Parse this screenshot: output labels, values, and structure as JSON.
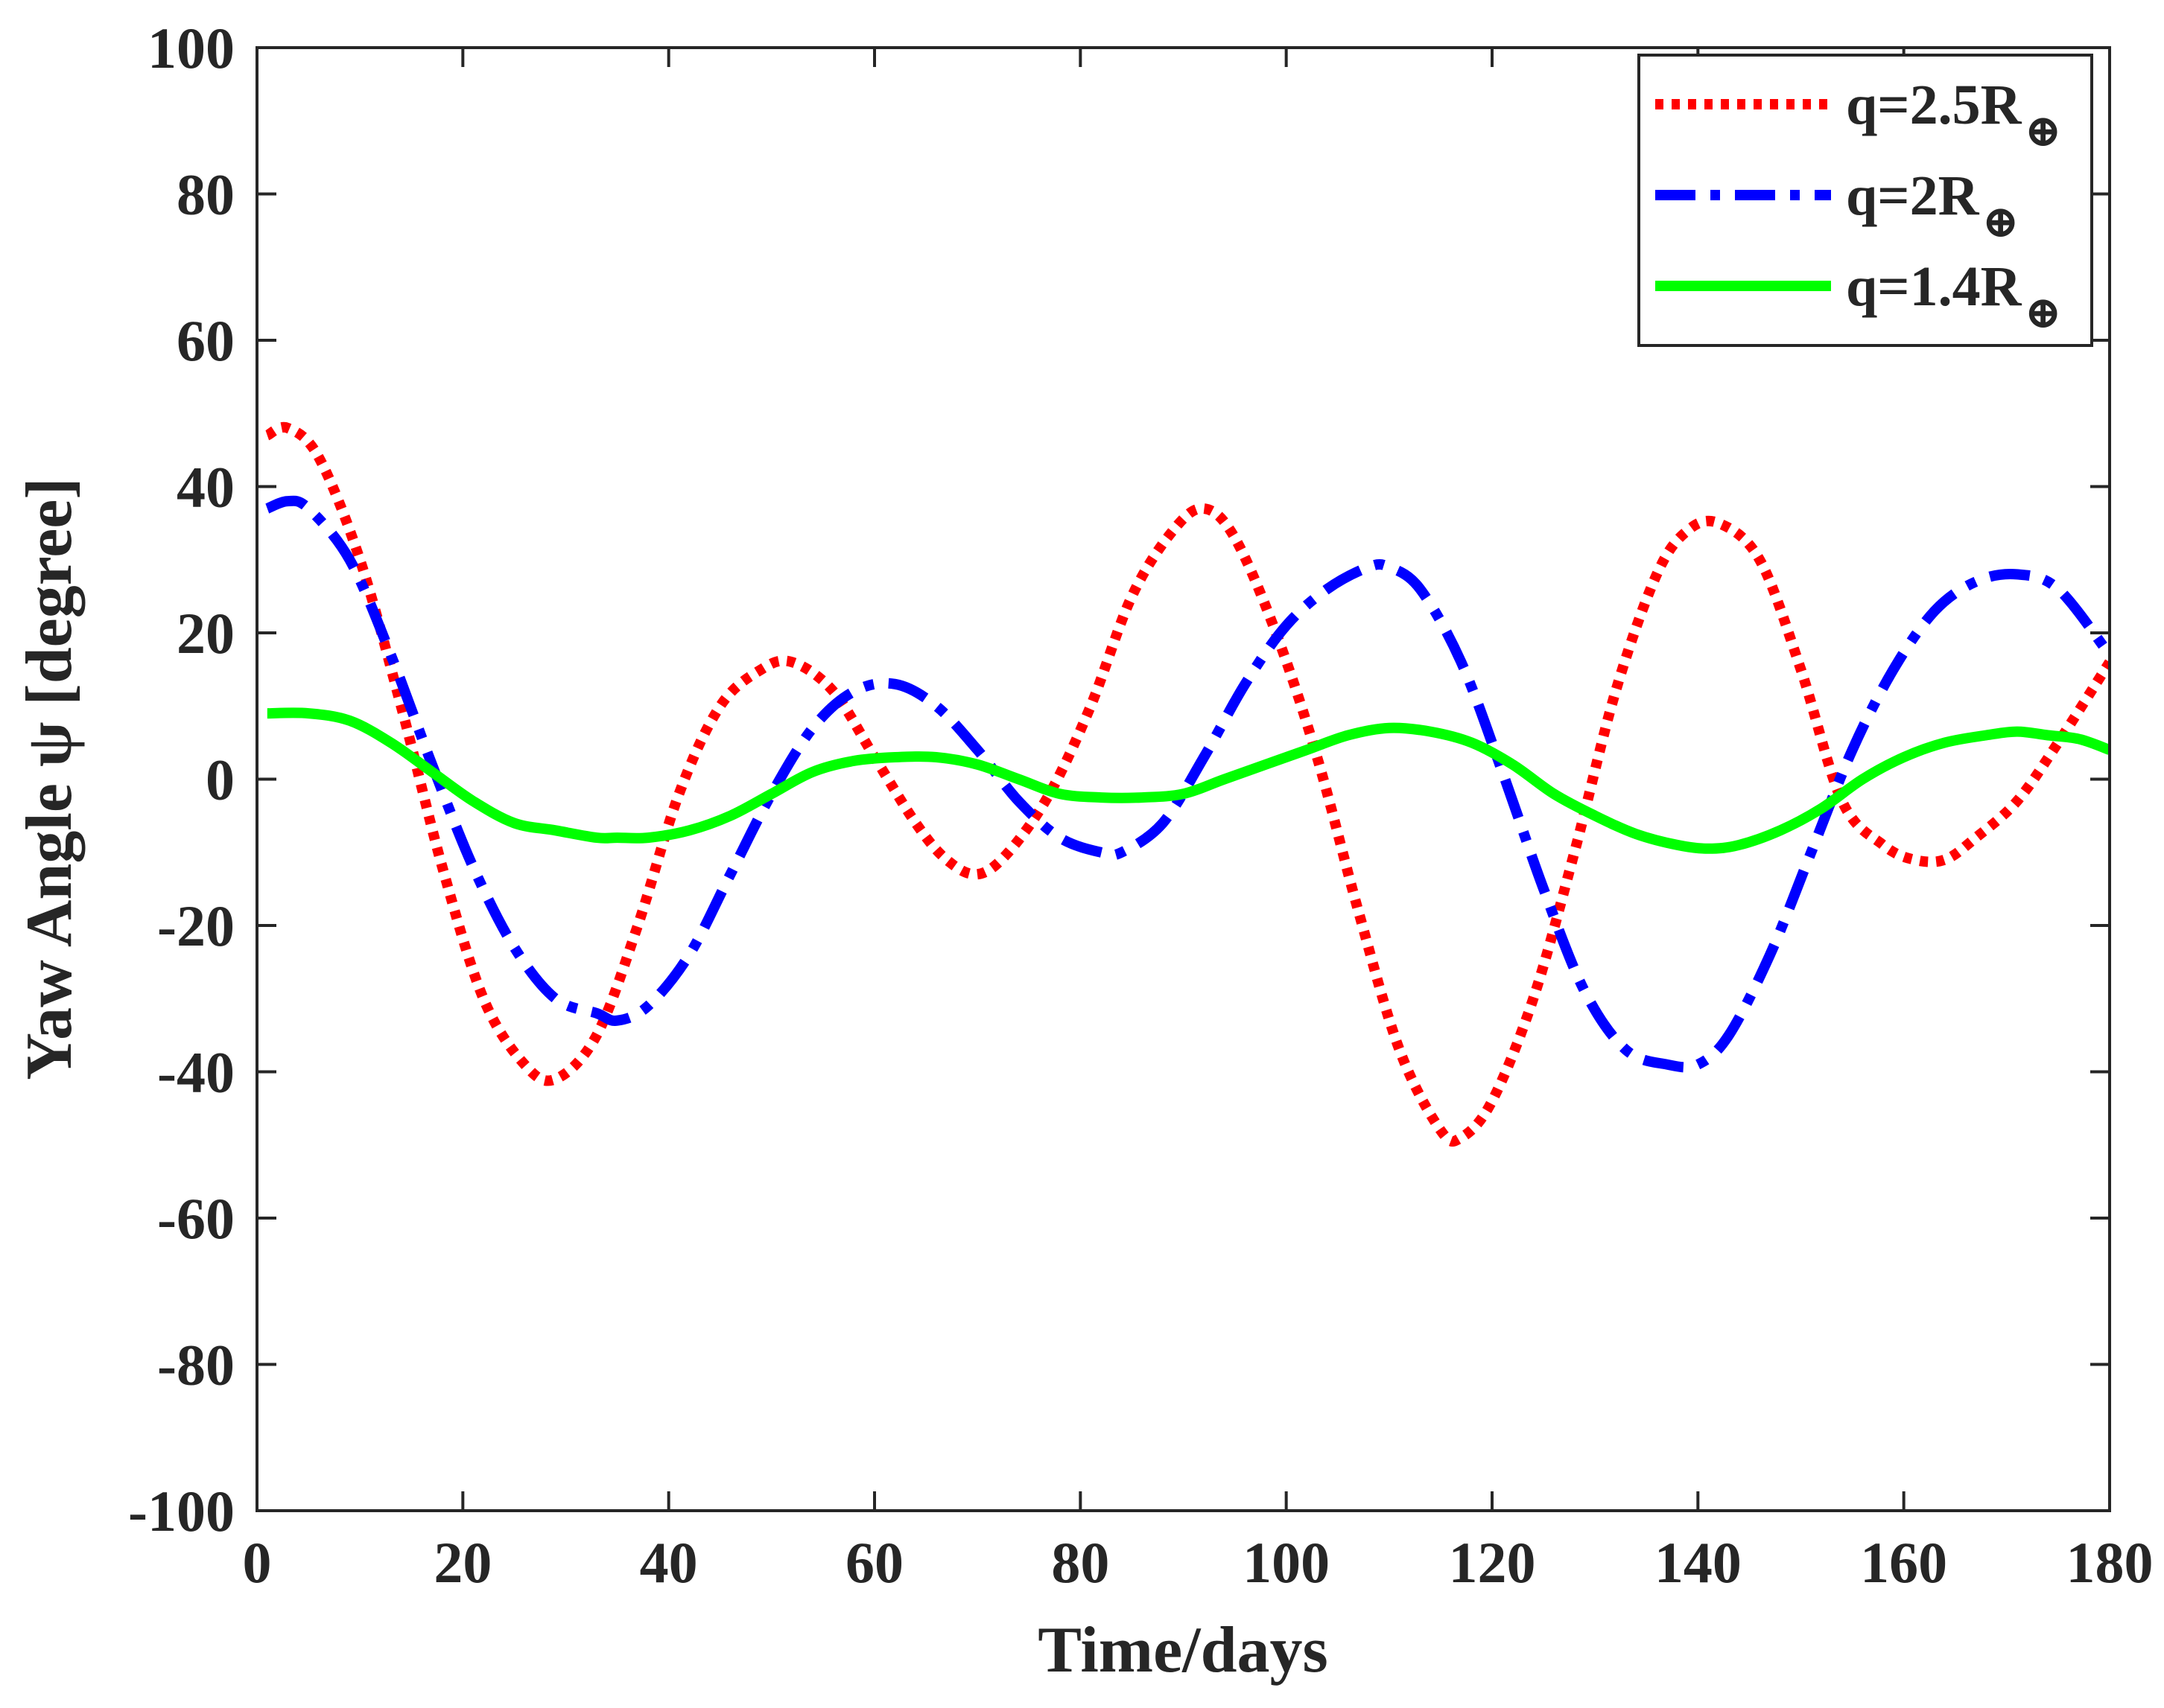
{
  "chart_data": {
    "type": "line",
    "title": "",
    "xlabel": "Time/days",
    "ylabel": "Yaw Angle ψ [degree]",
    "xlim": [
      0,
      180
    ],
    "ylim": [
      -100,
      100
    ],
    "xticks": [
      0,
      20,
      40,
      60,
      80,
      100,
      120,
      140,
      160,
      180
    ],
    "yticks": [
      -100,
      -80,
      -60,
      -40,
      -20,
      0,
      20,
      40,
      60,
      80,
      100
    ],
    "xtick_labels": [
      "0",
      "20",
      "40",
      "60",
      "80",
      "100",
      "120",
      "140",
      "160",
      "180"
    ],
    "ytick_labels": [
      "-100",
      "-80",
      "-60",
      "-40",
      "-20",
      "0",
      "20",
      "40",
      "60",
      "80",
      "100"
    ],
    "grid": false,
    "legend_position": "top-right",
    "series": [
      {
        "name": "q=2.5R⊕",
        "label_main": "q=2.5R",
        "label_sub": "⊕",
        "color": "#ff0000",
        "style": "dotted",
        "x": [
          1,
          3,
          6,
          10,
          14,
          18,
          22,
          26,
          29,
          33,
          37,
          41,
          45,
          49,
          52,
          56,
          60,
          64,
          67,
          70,
          73,
          77,
          81,
          85,
          89,
          92,
          95,
          99,
          103,
          107,
          111,
          115,
          117,
          120,
          124,
          128,
          132,
          136,
          139,
          142,
          146,
          150,
          154,
          158,
          161,
          164,
          167,
          171,
          175,
          180
        ],
        "y": [
          47,
          48,
          44,
          30,
          10,
          -12,
          -30,
          -39,
          -41,
          -35,
          -20,
          -2,
          10,
          15,
          16,
          12,
          3,
          -6,
          -11,
          -13,
          -10,
          -2,
          10,
          25,
          34,
          37,
          33,
          20,
          3,
          -18,
          -37,
          -48,
          -49,
          -44,
          -30,
          -10,
          12,
          28,
          34,
          35,
          30,
          15,
          -3,
          -9,
          -11,
          -11,
          -8,
          -3,
          5,
          16
        ]
      },
      {
        "name": "q=2R⊕",
        "label_main": "q=2R",
        "label_sub": "⊕",
        "color": "#0000ff",
        "style": "dashdot",
        "x": [
          1,
          3,
          5,
          9,
          13,
          17,
          21,
          25,
          29,
          33,
          35,
          38,
          42,
          46,
          50,
          54,
          58,
          62,
          66,
          70,
          74,
          78,
          82,
          84,
          88,
          92,
          96,
          100,
          104,
          108,
          110,
          113,
          117,
          121,
          125,
          129,
          133,
          137,
          140,
          143,
          147,
          151,
          155,
          159,
          163,
          167,
          171,
          175,
          180
        ],
        "y": [
          37,
          38,
          37,
          30,
          17,
          2,
          -12,
          -23,
          -30,
          -32,
          -33,
          -31,
          -24,
          -13,
          -2,
          7,
          12,
          13,
          10,
          4,
          -3,
          -8,
          -10,
          -10,
          -6,
          3,
          13,
          21,
          26,
          29,
          29,
          26,
          16,
          1,
          -15,
          -29,
          -37,
          -39,
          -39,
          -35,
          -24,
          -10,
          4,
          15,
          23,
          27,
          28,
          26,
          17
        ]
      },
      {
        "name": "q=1.4R⊕",
        "label_main": "q=1.4R",
        "label_sub": "⊕",
        "color": "#00ff00",
        "style": "solid",
        "x": [
          1,
          5,
          9,
          13,
          17,
          21,
          25,
          29,
          33,
          35,
          38,
          42,
          46,
          50,
          54,
          58,
          62,
          66,
          70,
          74,
          78,
          82,
          86,
          90,
          94,
          98,
          102,
          106,
          110,
          114,
          118,
          122,
          126,
          130,
          134,
          138,
          141,
          144,
          148,
          152,
          156,
          160,
          164,
          168,
          171,
          174,
          177,
          180
        ],
        "y": [
          9,
          9,
          8,
          5,
          1,
          -3,
          -6,
          -7,
          -8,
          -8,
          -8,
          -7,
          -5,
          -2,
          1,
          2.5,
          3,
          3,
          2,
          0,
          -2,
          -2.5,
          -2.5,
          -2,
          0,
          2,
          4,
          6,
          7,
          6.5,
          5,
          2,
          -2,
          -5,
          -7.5,
          -9,
          -9.5,
          -9,
          -7,
          -4,
          0,
          3,
          5,
          6,
          6.5,
          6,
          5.5,
          4
        ]
      }
    ]
  }
}
